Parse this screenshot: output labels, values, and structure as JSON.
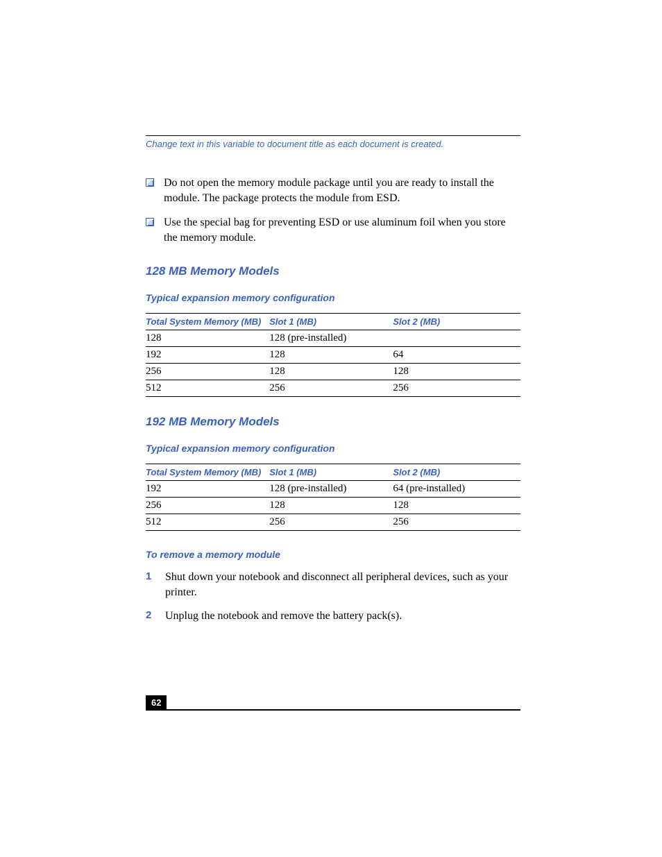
{
  "header": {
    "variable_text": "Change text in this variable to document title as each document is created."
  },
  "bullets": [
    "Do not open the memory module package until you are ready to install the module. The package protects the module from ESD.",
    "Use the special bag for preventing ESD or use aluminum foil when you store the memory module."
  ],
  "section1": {
    "heading": "128 MB Memory Models",
    "table_title": "Typical expansion memory configuration",
    "columns": [
      "Total System Memory (MB)",
      "Slot 1 (MB)",
      "Slot 2 (MB)"
    ],
    "rows": [
      [
        "128",
        "128 (pre-installed)",
        ""
      ],
      [
        "192",
        "128",
        "64"
      ],
      [
        "256",
        "128",
        "128"
      ],
      [
        "512",
        "256",
        "256"
      ]
    ]
  },
  "section2": {
    "heading": "192 MB Memory Models",
    "table_title": "Typical expansion memory configuration",
    "columns": [
      "Total System Memory (MB)",
      "Slot 1 (MB)",
      "Slot 2 (MB)"
    ],
    "rows": [
      [
        "192",
        "128 (pre-installed)",
        "64 (pre-installed)"
      ],
      [
        "256",
        "128",
        "128"
      ],
      [
        "512",
        "256",
        "256"
      ]
    ]
  },
  "section3": {
    "heading": "To remove a memory module",
    "steps": [
      "Shut down your notebook and disconnect all peripheral devices, such as your printer.",
      "Unplug the notebook and remove the battery pack(s)."
    ],
    "step_nums": [
      "1",
      "2"
    ]
  },
  "footer": {
    "page_number": "62"
  },
  "colors": {
    "accent": "#3a5fbf",
    "text": "#000000",
    "background": "#ffffff"
  }
}
